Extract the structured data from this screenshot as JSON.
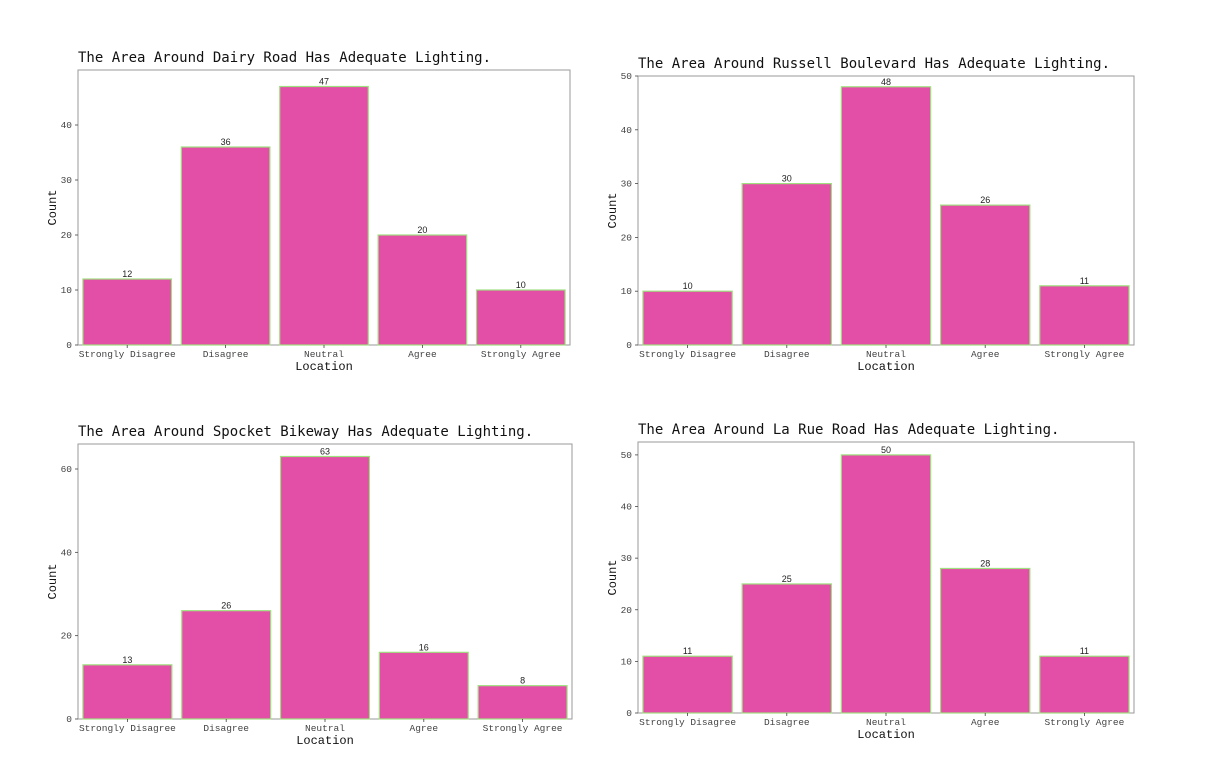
{
  "chart_data": [
    {
      "type": "bar",
      "title": "The Area Around Dairy Road Has Adequate Lighting.",
      "xlabel": "Location",
      "ylabel": "Count",
      "categories": [
        "Strongly Disagree",
        "Disagree",
        "Neutral",
        "Agree",
        "Strongly Agree"
      ],
      "values": [
        12,
        36,
        47,
        20,
        10
      ],
      "ylim": [
        0,
        50
      ],
      "yticks": [
        0,
        10,
        20,
        30,
        40
      ],
      "grid": false,
      "colors": {
        "bar": "#e34fa7",
        "bar_outline": "#9fdf7f"
      }
    },
    {
      "type": "bar",
      "title": "The Area Around Russell Boulevard Has Adequate Lighting.",
      "xlabel": "Location",
      "ylabel": "Count",
      "categories": [
        "Strongly Disagree",
        "Disagree",
        "Neutral",
        "Agree",
        "Strongly Agree"
      ],
      "values": [
        10,
        30,
        48,
        26,
        11
      ],
      "ylim": [
        0,
        50
      ],
      "yticks": [
        0,
        10,
        20,
        30,
        40,
        50
      ],
      "grid": false,
      "colors": {
        "bar": "#e34fa7",
        "bar_outline": "#9fdf7f"
      }
    },
    {
      "type": "bar",
      "title": "The Area Around Spocket Bikeway Has Adequate Lighting.",
      "xlabel": "Location",
      "ylabel": "Count",
      "categories": [
        "Strongly Disagree",
        "Disagree",
        "Neutral",
        "Agree",
        "Strongly Agree"
      ],
      "values": [
        13,
        26,
        63,
        16,
        8
      ],
      "ylim": [
        0,
        66
      ],
      "yticks": [
        0,
        20,
        40,
        60
      ],
      "grid": false,
      "colors": {
        "bar": "#e34fa7",
        "bar_outline": "#9fdf7f"
      }
    },
    {
      "type": "bar",
      "title": "The Area Around La Rue Road Has Adequate Lighting.",
      "xlabel": "Location",
      "ylabel": "Count",
      "categories": [
        "Strongly Disagree",
        "Disagree",
        "Neutral",
        "Agree",
        "Strongly Agree"
      ],
      "values": [
        11,
        25,
        50,
        28,
        11
      ],
      "ylim": [
        0,
        52.5
      ],
      "yticks": [
        0,
        10,
        20,
        30,
        40,
        50
      ],
      "grid": false,
      "colors": {
        "bar": "#e34fa7",
        "bar_outline": "#9fdf7f"
      }
    }
  ]
}
